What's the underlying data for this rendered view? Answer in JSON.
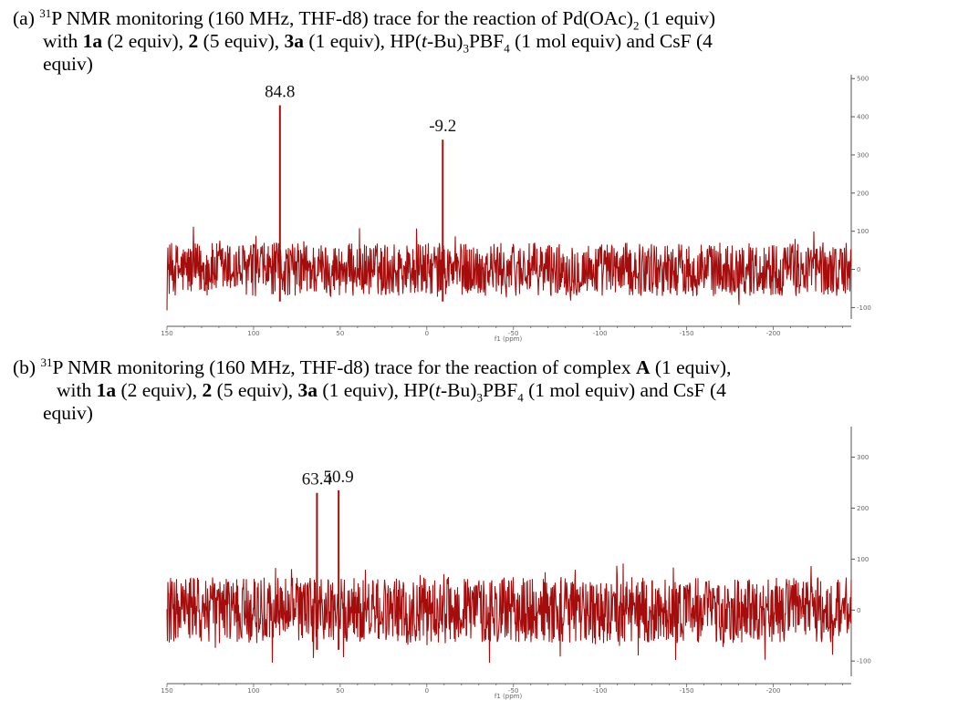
{
  "figure": {
    "a": {
      "caption": {
        "prefix": "(a) ",
        "sup": "31",
        "line1_rest": "P NMR monitoring (160 MHz, THF-d8) trace for the reaction of Pd(OAc)",
        "sub1": "2",
        "line1_end": " (1 equiv)",
        "line2": [
          {
            "t": "with ",
            "b": false
          },
          {
            "t": "1a",
            "b": true
          },
          {
            "t": " (2 equiv), ",
            "b": false
          },
          {
            "t": "2",
            "b": true
          },
          {
            "t": " (5 equiv), ",
            "b": false
          },
          {
            "t": "3a",
            "b": true
          },
          {
            "t": " (1 equiv), HP(",
            "b": false
          },
          {
            "t": "t",
            "i": true
          },
          {
            "t": "-Bu)",
            "b": false
          },
          {
            "t": "3",
            "sub": true
          },
          {
            "t": "PBF",
            "b": false
          },
          {
            "t": "4",
            "sub": true
          },
          {
            "t": " (1 mol equiv) and CsF (4",
            "b": false
          }
        ],
        "line3": "equiv)"
      }
    },
    "b": {
      "caption": {
        "prefix": "(b) ",
        "sup": "31",
        "line1_pre": "P NMR monitoring (160 MHz, THF-d8) trace for the reaction of complex ",
        "line1_bold": "A",
        "line1_end": " (1 equiv),",
        "line2": [
          {
            "t": "with ",
            "b": false
          },
          {
            "t": "1a",
            "b": true
          },
          {
            "t": " (2 equiv), ",
            "b": false
          },
          {
            "t": "2",
            "b": true
          },
          {
            "t": " (5 equiv), ",
            "b": false
          },
          {
            "t": "3a",
            "b": true
          },
          {
            "t": " (1 equiv), HP(",
            "b": false
          },
          {
            "t": "t",
            "i": true
          },
          {
            "t": "-Bu)",
            "b": false
          },
          {
            "t": "3",
            "sub": true
          },
          {
            "t": "PBF",
            "b": false
          },
          {
            "t": "4",
            "sub": true
          },
          {
            "t": " (1 mol equiv) and CsF (4",
            "b": false
          }
        ],
        "line3": "equiv)"
      }
    }
  },
  "chart_data": [
    {
      "type": "line",
      "xlabel": "f1 (ppm)",
      "xlim": [
        150,
        -245
      ],
      "x_ticks": [
        150,
        100,
        50,
        0,
        -50,
        -100,
        -150,
        -200
      ],
      "x_tick_labels": [
        "150",
        "100",
        "50",
        "0",
        "-50",
        "-100",
        "-150",
        "-200"
      ],
      "ylim": [
        -130,
        510
      ],
      "y_ticks": [
        500,
        400,
        300,
        200,
        100,
        0,
        -100
      ],
      "y_tick_labels": [
        "500",
        "400",
        "300",
        "200",
        "100",
        "0",
        "-100"
      ],
      "noise_amplitude": 70,
      "peaks": [
        {
          "ppm": 84.8,
          "label": "84.8",
          "height": 430
        },
        {
          "ppm": -9.2,
          "label": "-9.2",
          "height": 340
        }
      ],
      "colors": {
        "trace": "#a50d0d"
      }
    },
    {
      "type": "line",
      "xlabel": "f1 (ppm)",
      "xlim": [
        150,
        -245
      ],
      "x_ticks": [
        150,
        100,
        50,
        0,
        -50,
        -100,
        -150,
        -200
      ],
      "x_tick_labels": [
        "150",
        "100",
        "50",
        "0",
        "-50",
        "-100",
        "-150",
        "-200"
      ],
      "ylim": [
        -130,
        360
      ],
      "y_ticks": [
        300,
        200,
        100,
        0,
        -100
      ],
      "y_tick_labels": [
        "300",
        "200",
        "100",
        "0",
        "-100"
      ],
      "noise_amplitude": 65,
      "peaks": [
        {
          "ppm": 63.4,
          "label": "63.4",
          "height": 230
        },
        {
          "ppm": 50.9,
          "label": "50.9",
          "height": 235
        }
      ],
      "colors": {
        "trace": "#a50d0d"
      }
    }
  ]
}
